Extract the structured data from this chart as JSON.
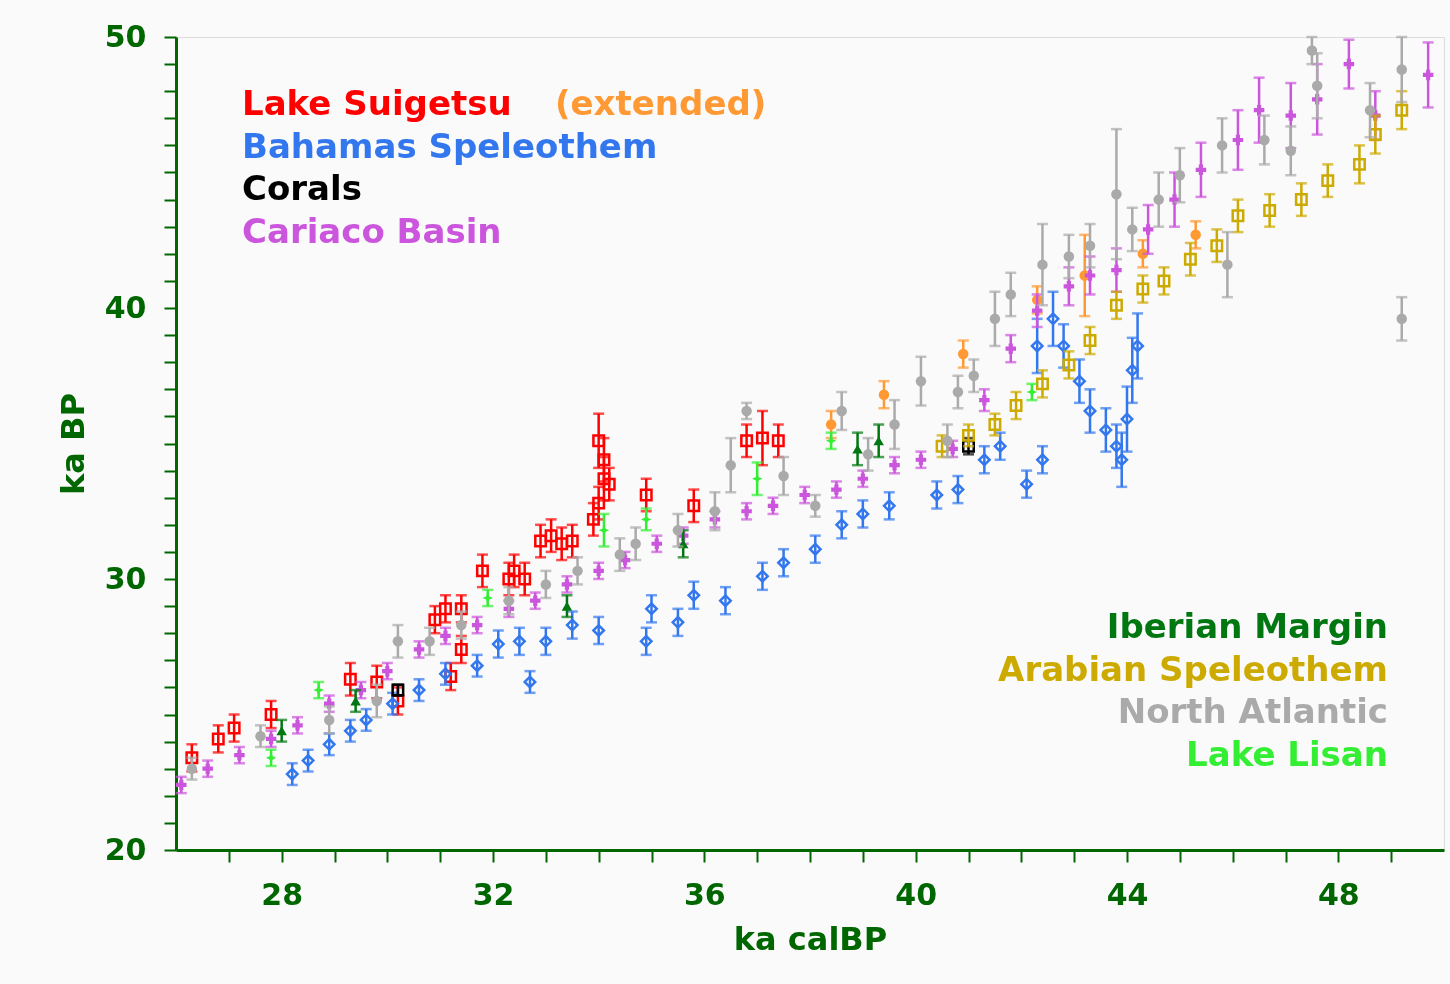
{
  "chart_data": {
    "type": "scatter",
    "xlabel": "ka calBP",
    "ylabel": "ka BP",
    "xlim": [
      26,
      50
    ],
    "ylim": [
      20,
      50
    ],
    "xticks": [
      {
        "value": 27,
        "label": null
      },
      28,
      {
        "value": 29,
        "label": null
      },
      {
        "value": 30,
        "label": null
      },
      {
        "value": 31,
        "label": null
      },
      32,
      {
        "value": 33,
        "label": null
      },
      {
        "value": 34,
        "label": null
      },
      {
        "value": 35,
        "label": null
      },
      36,
      {
        "value": 37,
        "label": null
      },
      {
        "value": 38,
        "label": null
      },
      {
        "value": 39,
        "label": null
      },
      40,
      {
        "value": 41,
        "label": null
      },
      {
        "value": 42,
        "label": null
      },
      {
        "value": 43,
        "label": null
      },
      44,
      {
        "value": 45,
        "label": null
      },
      {
        "value": 46,
        "label": null
      },
      {
        "value": 47,
        "label": null
      },
      48,
      {
        "value": 49,
        "label": null
      }
    ],
    "yticks": [
      20,
      {
        "value": 21,
        "label": null
      },
      {
        "value": 22,
        "label": null
      },
      {
        "value": 23,
        "label": null
      },
      {
        "value": 24,
        "label": null
      },
      {
        "value": 25,
        "label": null
      },
      {
        "value": 26,
        "label": null
      },
      {
        "value": 27,
        "label": null
      },
      {
        "value": 28,
        "label": null
      },
      {
        "value": 29,
        "label": null
      },
      30,
      {
        "value": 31,
        "label": null
      },
      {
        "value": 32,
        "label": null
      },
      {
        "value": 33,
        "label": null
      },
      {
        "value": 34,
        "label": null
      },
      {
        "value": 35,
        "label": null
      },
      {
        "value": 36,
        "label": null
      },
      {
        "value": 37,
        "label": null
      },
      {
        "value": 38,
        "label": null
      },
      {
        "value": 39,
        "label": null
      },
      40,
      {
        "value": 41,
        "label": null
      },
      {
        "value": 42,
        "label": null
      },
      {
        "value": 43,
        "label": null
      },
      {
        "value": 44,
        "label": null
      },
      {
        "value": 45,
        "label": null
      },
      {
        "value": 46,
        "label": null
      },
      {
        "value": 47,
        "label": null
      },
      {
        "value": 48,
        "label": null
      },
      {
        "value": 49,
        "label": null
      },
      50
    ],
    "grid": false,
    "legend": "top left",
    "series": [
      {
        "name": "Lake Suigetsu",
        "color": "#ff0000",
        "marker": "square",
        "x": [
          26.3,
          26.8,
          27.1,
          27.8,
          29.3,
          29.8,
          30.2,
          30.9,
          31.1,
          31.4,
          31.4,
          31.2,
          31.8,
          32.4,
          32.3,
          32.6,
          32.9,
          33.1,
          33.3,
          33.5,
          33.9,
          34.0,
          34.1,
          34.0,
          34.1,
          34.2,
          34.9,
          35.8,
          36.8,
          37.1,
          37.4
        ],
        "values": [
          23.4,
          24.1,
          24.5,
          25.0,
          26.3,
          26.2,
          25.5,
          28.5,
          28.9,
          28.9,
          27.4,
          26.4,
          30.3,
          30.3,
          30.0,
          30.0,
          31.4,
          31.6,
          31.3,
          31.4,
          32.2,
          32.8,
          33.7,
          35.1,
          34.4,
          33.5,
          33.1,
          32.7,
          35.1,
          35.2,
          35.1
        ],
        "errors": [
          0.5,
          0.5,
          0.5,
          0.5,
          0.6,
          0.6,
          0.5,
          0.5,
          0.5,
          0.5,
          0.5,
          0.5,
          0.6,
          0.6,
          0.6,
          0.6,
          0.6,
          0.6,
          0.6,
          0.6,
          0.6,
          0.6,
          0.8,
          1.0,
          0.8,
          0.6,
          0.6,
          0.6,
          0.6,
          1.0,
          0.6
        ]
      },
      {
        "name": "(extended)",
        "color": "#ff9933",
        "marker": "circle",
        "x": [
          38.4,
          39.4,
          40.9,
          42.3,
          43.2,
          44.3,
          45.3
        ],
        "values": [
          35.7,
          36.8,
          38.3,
          40.3,
          41.2,
          42.0,
          42.7
        ],
        "errors": [
          0.5,
          0.5,
          0.5,
          0.5,
          1.5,
          0.5,
          0.5
        ]
      },
      {
        "name": "Bahamas Speleothem",
        "color": "#3377ee",
        "marker": "diamond",
        "x": [
          28.2,
          28.5,
          28.9,
          29.3,
          29.6,
          30.1,
          30.6,
          31.1,
          31.7,
          32.1,
          32.5,
          32.7,
          33.0,
          33.5,
          34.0,
          34.9,
          35.0,
          35.5,
          35.8,
          36.4,
          37.1,
          37.5,
          38.1,
          38.6,
          39.0,
          39.5,
          40.4,
          40.8,
          41.3,
          41.6,
          42.1,
          42.4,
          42.3,
          42.6,
          42.8,
          43.1,
          43.3,
          43.6,
          43.8,
          44.0,
          44.1,
          44.2,
          43.9
        ],
        "values": [
          22.8,
          23.3,
          23.9,
          24.4,
          24.8,
          25.4,
          25.9,
          26.5,
          26.8,
          27.6,
          27.7,
          26.2,
          27.7,
          28.3,
          28.1,
          27.7,
          28.9,
          28.4,
          29.4,
          29.2,
          30.1,
          30.6,
          31.1,
          32.0,
          32.4,
          32.7,
          33.1,
          33.3,
          34.4,
          34.9,
          33.5,
          34.4,
          38.6,
          39.6,
          38.6,
          37.3,
          36.2,
          35.5,
          34.9,
          35.9,
          37.7,
          38.6,
          34.4
        ],
        "errors": [
          0.4,
          0.4,
          0.4,
          0.4,
          0.4,
          0.4,
          0.4,
          0.4,
          0.4,
          0.5,
          0.5,
          0.4,
          0.5,
          0.5,
          0.5,
          0.5,
          0.5,
          0.5,
          0.5,
          0.5,
          0.5,
          0.5,
          0.5,
          0.5,
          0.5,
          0.5,
          0.5,
          0.5,
          0.5,
          0.5,
          0.5,
          0.5,
          1.0,
          1.0,
          0.8,
          0.8,
          0.8,
          0.8,
          0.8,
          1.2,
          1.2,
          1.2,
          1.0
        ]
      },
      {
        "name": "Corals",
        "color": "#000000",
        "marker": "square",
        "x": [
          30.2,
          41.0
        ],
        "values": [
          25.9,
          34.9
        ],
        "errors": [
          0.2,
          0.3
        ]
      },
      {
        "name": "Cariaco Basin",
        "color": "#cc55dd",
        "marker": "cross",
        "x": [
          26.1,
          26.6,
          27.2,
          27.8,
          28.3,
          28.9,
          29.5,
          30.0,
          30.6,
          31.1,
          31.7,
          32.3,
          32.8,
          33.4,
          34.0,
          34.5,
          35.1,
          35.6,
          36.2,
          36.8,
          37.3,
          37.9,
          38.5,
          39.0,
          39.6,
          40.1,
          40.7,
          41.3,
          41.8,
          42.3,
          42.9,
          43.3,
          43.8,
          44.4,
          44.9,
          45.4,
          46.1,
          46.5,
          47.1,
          47.6,
          48.2,
          48.7,
          49.7
        ],
        "values": [
          22.4,
          23.0,
          23.5,
          24.1,
          24.6,
          25.4,
          25.9,
          26.6,
          27.4,
          27.9,
          28.3,
          28.9,
          29.2,
          29.8,
          30.3,
          30.7,
          31.3,
          31.6,
          32.2,
          32.5,
          32.7,
          33.1,
          33.3,
          33.7,
          34.2,
          34.4,
          34.8,
          36.6,
          38.5,
          39.9,
          40.8,
          41.2,
          41.4,
          42.9,
          44.0,
          45.1,
          46.2,
          47.3,
          47.1,
          47.7,
          49.0,
          47.1,
          48.6
        ],
        "errors": [
          0.3,
          0.3,
          0.3,
          0.3,
          0.3,
          0.3,
          0.3,
          0.3,
          0.3,
          0.3,
          0.3,
          0.3,
          0.3,
          0.3,
          0.3,
          0.3,
          0.3,
          0.3,
          0.3,
          0.3,
          0.3,
          0.3,
          0.3,
          0.3,
          0.3,
          0.3,
          0.3,
          0.4,
          0.5,
          0.6,
          0.7,
          0.7,
          0.8,
          0.9,
          1.0,
          1.0,
          1.1,
          1.2,
          1.2,
          1.3,
          0.9,
          0.9,
          1.2
        ]
      },
      {
        "name": "Iberian Margin",
        "color": "#007711",
        "marker": "triangle",
        "x": [
          28.0,
          29.4,
          33.4,
          35.6,
          38.9,
          39.3
        ],
        "values": [
          24.4,
          25.5,
          29.0,
          31.3,
          34.8,
          35.1
        ],
        "errors": [
          0.4,
          0.4,
          0.4,
          0.5,
          0.6,
          0.6
        ]
      },
      {
        "name": "Arabian Speleothem",
        "color": "#ccaa00",
        "marker": "square",
        "x": [
          40.5,
          41.0,
          41.5,
          41.9,
          42.4,
          42.9,
          43.3,
          43.8,
          44.3,
          44.7,
          45.2,
          45.7,
          46.1,
          46.7,
          47.3,
          47.8,
          48.4,
          48.7,
          49.2
        ],
        "values": [
          34.9,
          35.3,
          35.7,
          36.4,
          37.2,
          37.9,
          38.8,
          40.1,
          40.7,
          41.0,
          41.8,
          42.3,
          43.4,
          43.6,
          44.0,
          44.7,
          45.3,
          46.4,
          47.3
        ],
        "errors": [
          0.4,
          0.4,
          0.4,
          0.5,
          0.5,
          0.5,
          0.5,
          0.5,
          0.5,
          0.5,
          0.6,
          0.6,
          0.6,
          0.6,
          0.6,
          0.6,
          0.7,
          0.7,
          0.7
        ]
      },
      {
        "name": "North Atlantic",
        "color": "#aaaaaa",
        "marker": "circle",
        "x": [
          26.3,
          27.6,
          28.9,
          29.8,
          30.2,
          30.8,
          31.4,
          32.3,
          33.0,
          33.6,
          34.4,
          34.7,
          35.5,
          36.2,
          36.5,
          36.8,
          37.5,
          38.1,
          38.6,
          39.1,
          39.6,
          40.1,
          40.6,
          40.8,
          41.1,
          41.5,
          41.8,
          42.4,
          42.9,
          43.3,
          43.8,
          44.1,
          44.6,
          45.0,
          45.8,
          45.9,
          46.6,
          47.1,
          47.5,
          47.6,
          49.2,
          49.2,
          48.6
        ],
        "values": [
          23.0,
          24.2,
          24.8,
          25.5,
          27.7,
          27.7,
          28.3,
          29.2,
          29.8,
          30.3,
          30.9,
          31.3,
          31.8,
          32.5,
          34.2,
          36.2,
          33.8,
          32.7,
          36.2,
          34.6,
          35.7,
          37.3,
          35.1,
          36.9,
          37.5,
          39.6,
          40.5,
          41.6,
          41.9,
          42.3,
          44.2,
          42.9,
          44.0,
          44.9,
          46.0,
          41.6,
          46.2,
          45.8,
          49.5,
          48.2,
          48.8,
          39.6,
          47.3
        ],
        "errors": [
          0.4,
          0.4,
          0.5,
          0.6,
          0.6,
          0.5,
          0.5,
          0.5,
          0.5,
          0.5,
          0.6,
          0.6,
          0.6,
          0.7,
          1.0,
          0.3,
          0.7,
          0.4,
          0.7,
          0.6,
          0.9,
          0.9,
          0.6,
          0.6,
          0.6,
          1.0,
          0.8,
          1.5,
          0.8,
          0.8,
          2.4,
          0.8,
          1.0,
          1.0,
          1.0,
          1.2,
          0.9,
          0.9,
          0.5,
          1.2,
          1.2,
          0.8,
          1.0
        ]
      },
      {
        "name": "Lake Lisan",
        "color": "#33ee33",
        "marker": "star",
        "x": [
          27.8,
          28.7,
          31.9,
          34.1,
          34.9,
          37.0,
          38.4,
          42.2
        ],
        "values": [
          23.4,
          25.9,
          29.3,
          31.8,
          32.2,
          33.7,
          35.1,
          36.9
        ],
        "errors": [
          0.3,
          0.3,
          0.3,
          0.6,
          0.4,
          0.6,
          0.3,
          0.3
        ]
      }
    ]
  }
}
